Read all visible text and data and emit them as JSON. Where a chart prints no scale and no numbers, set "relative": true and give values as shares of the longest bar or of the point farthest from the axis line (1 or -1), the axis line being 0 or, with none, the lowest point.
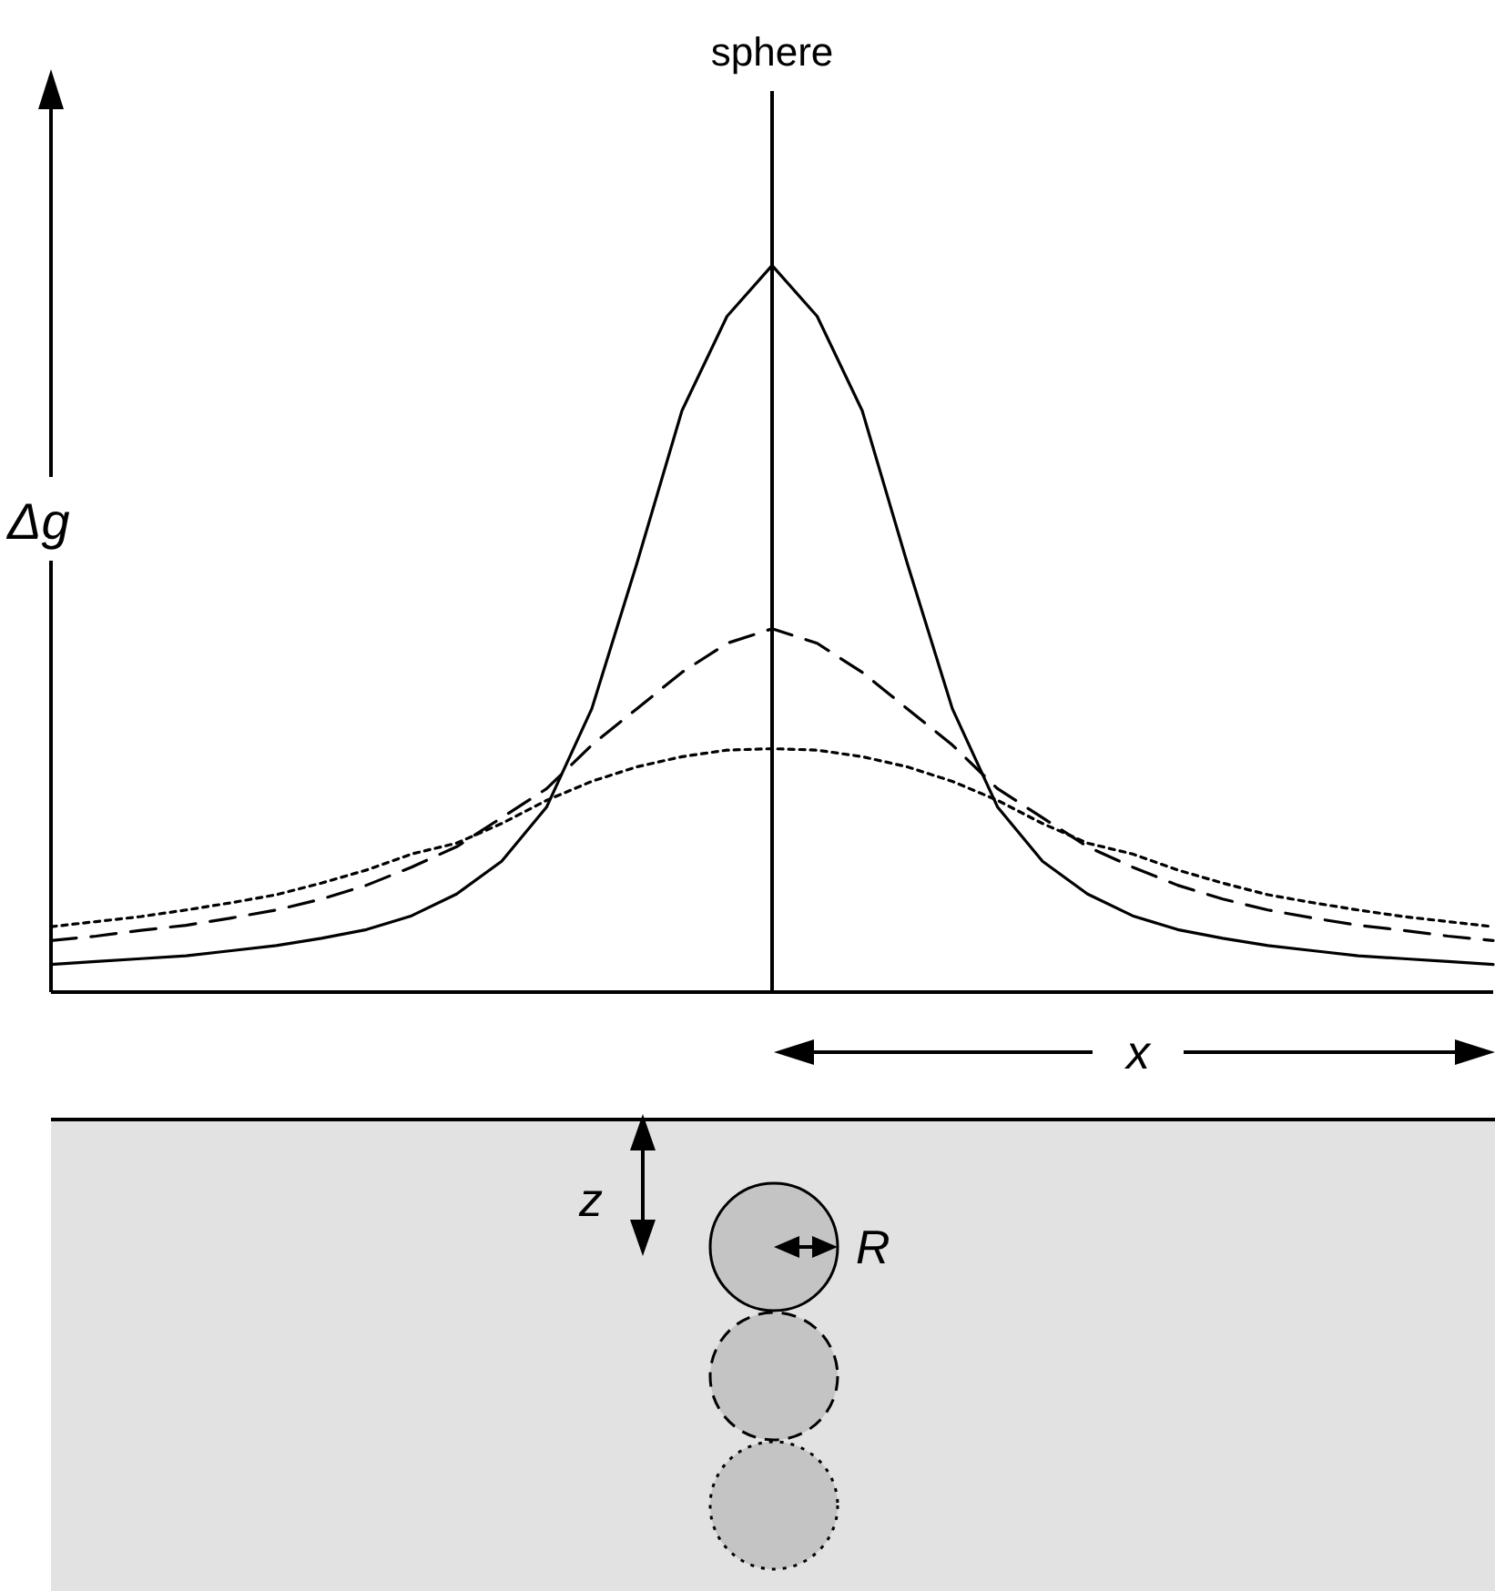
{
  "chart_data": {
    "type": "line",
    "relative": true,
    "ylabel": "Δg",
    "xlabel": "x",
    "categories": [
      null,
      null,
      null,
      null,
      null,
      null,
      null,
      null,
      null,
      null,
      null,
      null,
      null,
      null,
      null,
      null,
      null,
      null,
      null,
      null,
      null,
      null,
      null,
      null,
      null,
      null,
      null,
      null,
      null,
      null,
      null,
      null,
      null
    ],
    "series": [
      {
        "color": "#000000",
        "line_style": "solid",
        "values": [
          0.038,
          0.042,
          0.046,
          0.05,
          0.057,
          0.064,
          0.074,
          0.086,
          0.105,
          0.135,
          0.18,
          0.255,
          0.39,
          0.59,
          0.8,
          0.93,
          1.0,
          0.93,
          0.8,
          0.59,
          0.39,
          0.255,
          0.18,
          0.135,
          0.105,
          0.086,
          0.074,
          0.064,
          0.057,
          0.05,
          0.046,
          0.042,
          0.038
        ]
      },
      {
        "color": "#000000",
        "line_style": "dashed",
        "values": [
          0.071,
          0.077,
          0.085,
          0.092,
          0.102,
          0.113,
          0.128,
          0.147,
          0.172,
          0.2,
          0.24,
          0.28,
          0.34,
          0.39,
          0.44,
          0.48,
          0.5,
          0.48,
          0.44,
          0.39,
          0.34,
          0.28,
          0.24,
          0.2,
          0.172,
          0.147,
          0.128,
          0.113,
          0.102,
          0.092,
          0.085,
          0.077,
          0.071
        ]
      },
      {
        "color": "#000000",
        "line_style": "dotted",
        "values": [
          0.09,
          0.097,
          0.104,
          0.113,
          0.123,
          0.134,
          0.15,
          0.168,
          0.19,
          0.205,
          0.232,
          0.264,
          0.29,
          0.31,
          0.324,
          0.333,
          0.335,
          0.333,
          0.324,
          0.31,
          0.29,
          0.264,
          0.232,
          0.205,
          0.19,
          0.168,
          0.15,
          0.134,
          0.123,
          0.113,
          0.104,
          0.097,
          0.09
        ]
      }
    ],
    "marker": "none",
    "ref_lines": [
      {
        "axis": "x",
        "label": "sphere",
        "color": "#000000",
        "line_style": "solid"
      }
    ],
    "annotations": [
      "z",
      "R"
    ]
  }
}
